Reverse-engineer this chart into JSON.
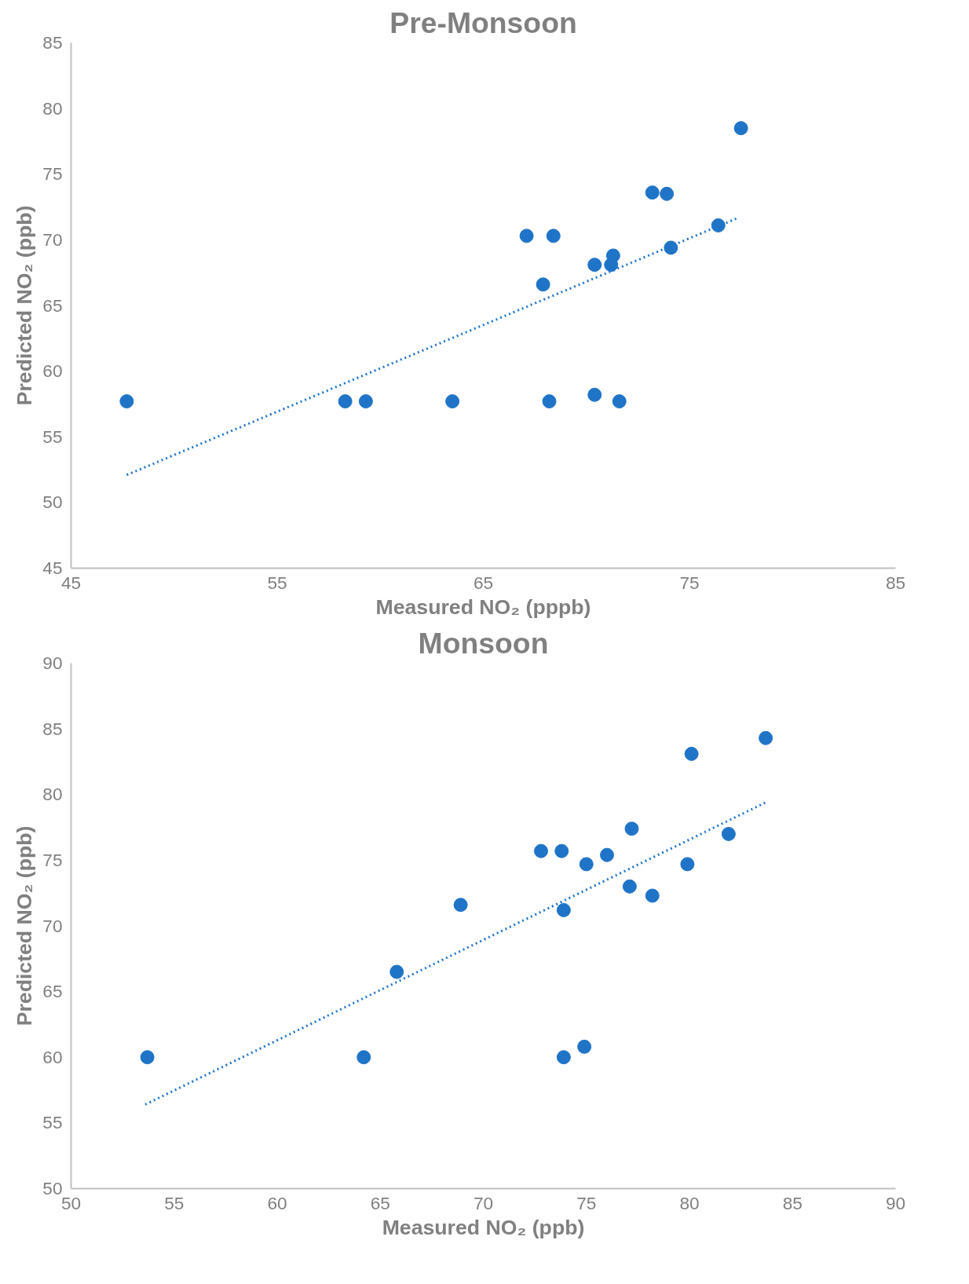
{
  "chart_data": [
    {
      "type": "scatter",
      "title": "Pre-Monsoon",
      "xlabel": "Measured NO₂ (pppb)",
      "ylabel": "Predicted NO₂ (ppb)",
      "xlim": [
        45,
        85
      ],
      "xticks": [
        45,
        55,
        65,
        75,
        85
      ],
      "ylim": [
        45,
        85
      ],
      "yticks": [
        45,
        50,
        55,
        60,
        65,
        70,
        75,
        80,
        85
      ],
      "grid": false,
      "series": [
        {
          "color": "#1f74c8",
          "marker": "circle",
          "x": [
            47.7,
            58.3,
            59.3,
            63.5,
            67.1,
            68.4,
            67.9,
            68.2,
            70.4,
            70.4,
            71.3,
            71.2,
            71.6,
            73.2,
            73.9,
            74.1,
            76.4,
            77.5
          ],
          "values": [
            57.7,
            57.7,
            57.7,
            57.7,
            70.3,
            70.3,
            66.6,
            57.7,
            68.1,
            58.2,
            68.8,
            68.1,
            57.7,
            73.6,
            73.5,
            69.4,
            71.1,
            78.5
          ]
        },
        {
          "type": "line",
          "color": "#1f74c8",
          "line_style": "dotted",
          "marker": "none",
          "x": [
            47.7,
            77.4
          ],
          "values": [
            52.1,
            71.7
          ]
        }
      ]
    },
    {
      "type": "scatter",
      "title": "Monsoon",
      "xlabel": "Measured NO₂ (ppb)",
      "ylabel": "Predicted NO₂ (ppb)",
      "xlim": [
        50,
        90
      ],
      "xticks": [
        50,
        55,
        60,
        65,
        70,
        75,
        80,
        85,
        90
      ],
      "ylim": [
        50,
        90
      ],
      "yticks": [
        50,
        55,
        60,
        65,
        70,
        75,
        80,
        85,
        90
      ],
      "grid": false,
      "series": [
        {
          "color": "#1f74c8",
          "marker": "circle",
          "x": [
            53.7,
            64.2,
            65.8,
            68.9,
            72.8,
            73.8,
            73.9,
            73.9,
            74.9,
            75.0,
            76.0,
            77.2,
            77.1,
            78.2,
            79.9,
            80.1,
            81.9,
            83.7
          ],
          "values": [
            60.0,
            60.0,
            66.5,
            71.6,
            75.7,
            75.7,
            71.2,
            60.0,
            60.8,
            74.7,
            75.4,
            77.4,
            73.0,
            72.3,
            74.7,
            83.1,
            77.0,
            84.3
          ]
        },
        {
          "type": "line",
          "color": "#1f74c8",
          "line_style": "dotted",
          "marker": "none",
          "x": [
            53.6,
            83.7
          ],
          "values": [
            56.4,
            79.4
          ]
        }
      ]
    }
  ]
}
